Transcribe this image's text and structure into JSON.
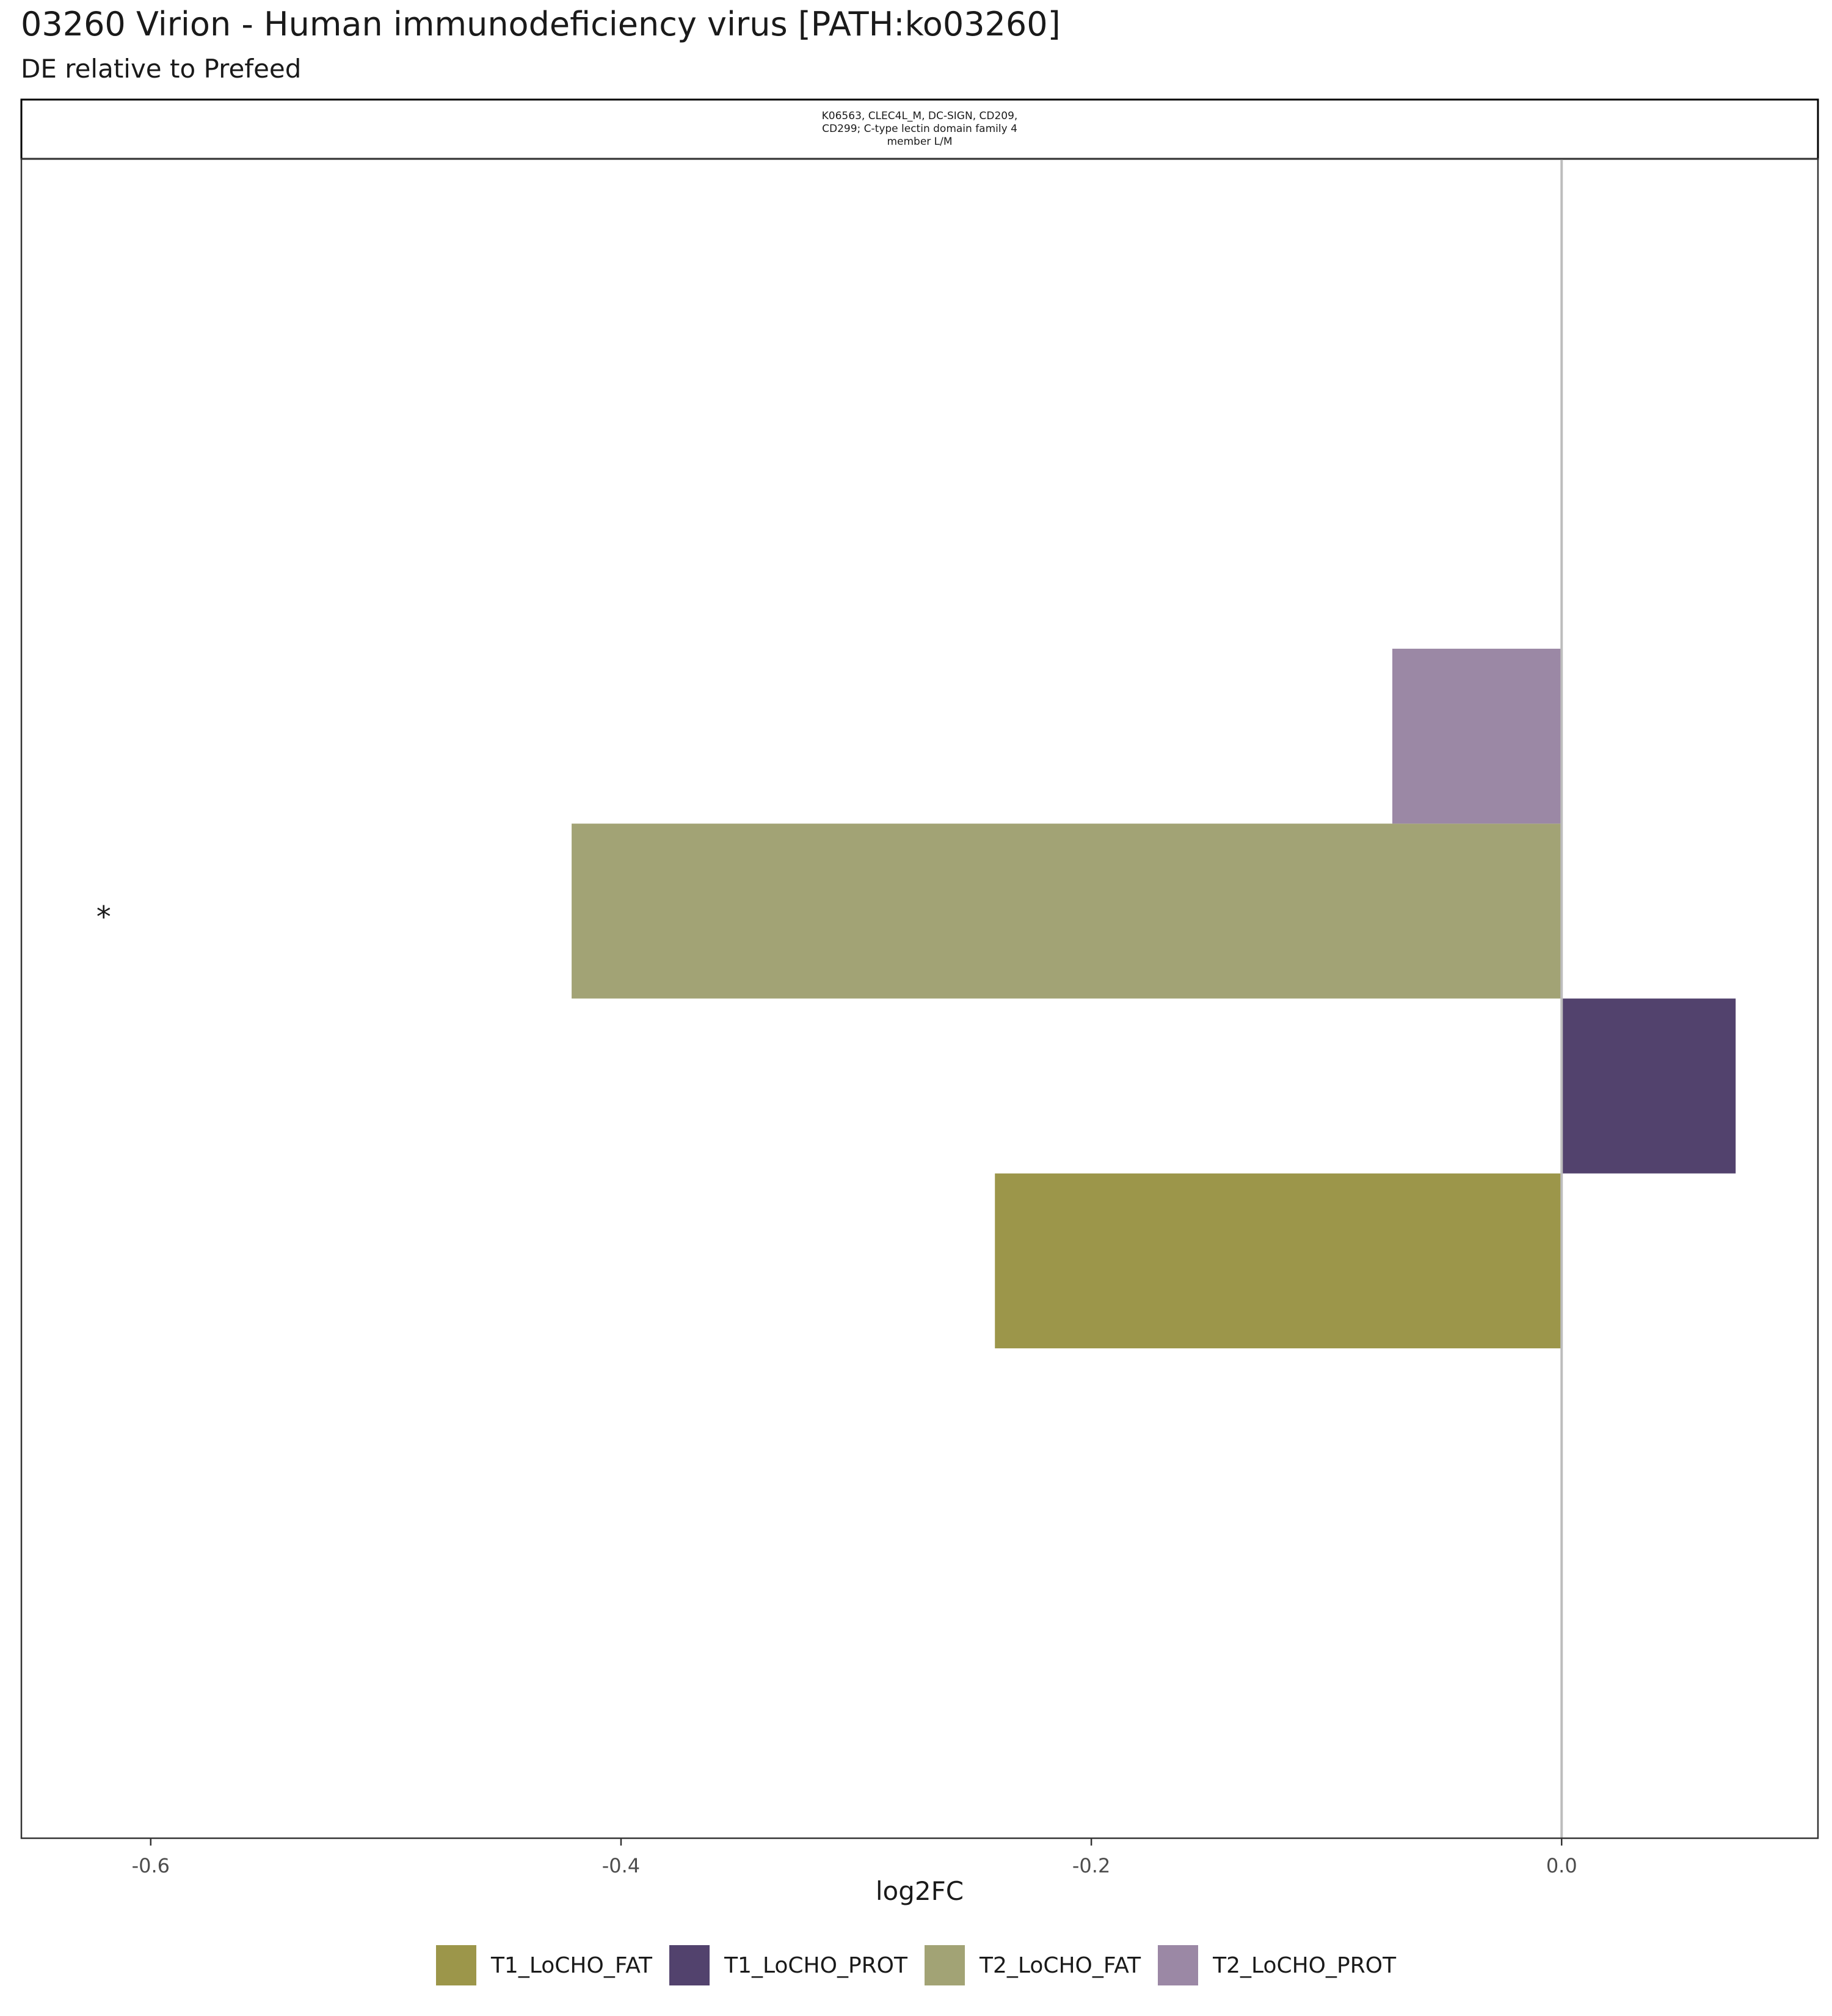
{
  "title": "03260 Virion - Human immunodeficiency virus [PATH:ko03260]",
  "subtitle": "DE relative to Prefeed",
  "chart_data": {
    "type": "bar",
    "orientation": "horizontal",
    "facet_label_lines": [
      "K06563, CLEC4L_M, DC-SIGN, CD209,",
      "CD299; C-type lectin domain family 4",
      "member L/M"
    ],
    "xlabel": "log2FC",
    "ylabel": "",
    "xlim": [
      -0.655,
      0.109
    ],
    "xticks": [
      -0.6,
      -0.4,
      -0.2,
      0.0
    ],
    "xtick_labels": [
      "-0.6",
      "-0.4",
      "-0.2",
      "0.0"
    ],
    "reference_line": 0.0,
    "grid": false,
    "legend_position": "bottom",
    "series": [
      {
        "name": "T1_LoCHO_FAT",
        "value": -0.241,
        "color": "#9C964A"
      },
      {
        "name": "T1_LoCHO_PROT",
        "value": 0.074,
        "color": "#52426D"
      },
      {
        "name": "T2_LoCHO_FAT",
        "value": -0.421,
        "color": "#A2A375"
      },
      {
        "name": "T2_LoCHO_PROT",
        "value": -0.072,
        "color": "#9B88A5"
      }
    ],
    "annotations": [
      {
        "text": "*",
        "x": -0.62,
        "series": "T2_LoCHO_FAT"
      }
    ]
  }
}
